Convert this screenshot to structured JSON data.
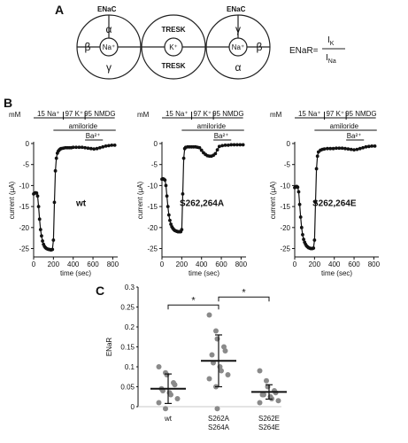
{
  "panels": {
    "a": {
      "label": "A",
      "enac_left": "ENaC",
      "enac_right": "ENaC",
      "left_subunits": {
        "top": "α",
        "left": "β",
        "bottom": "γ",
        "center": "Na⁺"
      },
      "middle": {
        "top": "TRESK",
        "bottom": "TRESK",
        "center": "K⁺"
      },
      "right_subunits": {
        "top": "γ",
        "right": "β",
        "bottom": "α",
        "center": "Na⁺"
      },
      "formula": {
        "lhs": "ENaR=",
        "numerator": "I",
        "numerator_sub": "K",
        "denominator": "I",
        "denominator_sub": "Na"
      }
    },
    "b": {
      "label": "B"
    },
    "c": {
      "label": "C"
    }
  },
  "protocol": {
    "unit": "mM",
    "segments": [
      "15 Na⁺",
      "97 K⁺",
      "95 NMDG"
    ],
    "drug": "amiloride",
    "ba": "Ba²⁺"
  },
  "chart_data": [
    {
      "type": "line",
      "panel": "B",
      "name": "wt",
      "label": "wt",
      "xlabel": "time (sec)",
      "ylabel": "current (µA)",
      "xlim": [
        0,
        850
      ],
      "ylim": [
        -27,
        0
      ],
      "xticks": [
        0,
        200,
        400,
        600,
        800
      ],
      "yticks": [
        0,
        -5,
        -10,
        -15,
        -20,
        -25
      ],
      "x": [
        0,
        10,
        20,
        30,
        40,
        50,
        60,
        70,
        80,
        90,
        100,
        110,
        120,
        130,
        140,
        150,
        160,
        170,
        180,
        190,
        200,
        210,
        220,
        230,
        240,
        250,
        260,
        270,
        280,
        300,
        320,
        340,
        360,
        380,
        400,
        430,
        460,
        490,
        520,
        550,
        580,
        610,
        640,
        670,
        700,
        730,
        760,
        790,
        820
      ],
      "y": [
        -12,
        -11.8,
        -11.7,
        -11.8,
        -12.5,
        -15,
        -18,
        -20.5,
        -22,
        -23.2,
        -24,
        -24.5,
        -24.8,
        -25,
        -25.1,
        -25.2,
        -25.2,
        -25.3,
        -25.3,
        -25.2,
        -23,
        -14,
        -6.5,
        -3.5,
        -2.3,
        -1.8,
        -1.5,
        -1.3,
        -1.2,
        -1.1,
        -1.0,
        -1.0,
        -1.0,
        -1.0,
        -0.9,
        -0.9,
        -0.9,
        -0.9,
        -1.0,
        -1.1,
        -1.2,
        -1.3,
        -1.2,
        -1.0,
        -0.8,
        -0.6,
        -0.5,
        -0.4,
        -0.4
      ]
    },
    {
      "type": "line",
      "panel": "B",
      "name": "S262,264A",
      "label": "S262,264A",
      "xlabel": "time (sec)",
      "ylabel": "current (µA)",
      "xlim": [
        0,
        850
      ],
      "ylim": [
        -27,
        0
      ],
      "xticks": [
        0,
        200,
        400,
        600,
        800
      ],
      "yticks": [
        0,
        -5,
        -10,
        -15,
        -20,
        -25
      ],
      "x": [
        0,
        10,
        20,
        30,
        40,
        50,
        60,
        70,
        80,
        90,
        100,
        110,
        120,
        130,
        140,
        150,
        160,
        170,
        180,
        190,
        200,
        210,
        220,
        230,
        240,
        260,
        280,
        300,
        320,
        340,
        360,
        380,
        400,
        420,
        440,
        460,
        480,
        500,
        520,
        540,
        560,
        580,
        610,
        640,
        670,
        700,
        730,
        760,
        790,
        820
      ],
      "y": [
        -8.5,
        -8.4,
        -8.5,
        -8.7,
        -10,
        -12.5,
        -15,
        -17,
        -18.3,
        -19.2,
        -19.8,
        -20.2,
        -20.5,
        -20.7,
        -20.8,
        -20.9,
        -21,
        -21,
        -21,
        -21,
        -20.5,
        -12,
        -3.5,
        -1.2,
        -0.9,
        -0.8,
        -0.8,
        -0.8,
        -0.8,
        -0.8,
        -0.9,
        -1.0,
        -1.6,
        -2.2,
        -2.6,
        -2.9,
        -3.0,
        -3.0,
        -2.8,
        -2.4,
        -1.5,
        -0.7,
        -0.5,
        -0.4,
        -0.4,
        -0.3,
        -0.3,
        -0.3,
        -0.3,
        -0.3
      ]
    },
    {
      "type": "line",
      "panel": "B",
      "name": "S262,264E",
      "label": "S262,264E",
      "xlabel": "time (sec)",
      "ylabel": "current (µA)",
      "xlim": [
        0,
        850
      ],
      "ylim": [
        -27,
        0
      ],
      "xticks": [
        0,
        200,
        400,
        600,
        800
      ],
      "yticks": [
        0,
        -5,
        -10,
        -15,
        -20,
        -25
      ],
      "x": [
        0,
        10,
        20,
        30,
        40,
        50,
        60,
        70,
        80,
        90,
        100,
        110,
        120,
        130,
        140,
        150,
        160,
        170,
        180,
        190,
        200,
        210,
        220,
        230,
        240,
        260,
        280,
        300,
        330,
        360,
        390,
        420,
        450,
        480,
        510,
        540,
        570,
        600,
        630,
        660,
        690,
        720,
        750,
        780,
        810
      ],
      "y": [
        -10.5,
        -10.3,
        -10.2,
        -10.4,
        -11.5,
        -14.5,
        -17.5,
        -20,
        -21.7,
        -22.8,
        -23.5,
        -24,
        -24.4,
        -24.6,
        -24.8,
        -24.9,
        -25,
        -25,
        -25,
        -24.9,
        -23,
        -14,
        -6,
        -3,
        -2,
        -1.6,
        -1.4,
        -1.3,
        -1.2,
        -1.2,
        -1.2,
        -1.1,
        -1.1,
        -1.1,
        -1.2,
        -1.3,
        -1.4,
        -1.5,
        -1.4,
        -1.2,
        -1.0,
        -0.8,
        -0.7,
        -0.6,
        -0.6
      ]
    },
    {
      "type": "scatter",
      "panel": "C",
      "ylabel": "ENaR",
      "ylim": [
        0,
        0.3
      ],
      "yticks": [
        0,
        0.05,
        0.1,
        0.15,
        0.2,
        0.25,
        0.3
      ],
      "categories": [
        "wt",
        "S262A S264A",
        "S262E S264E"
      ],
      "category_lines": [
        [
          "wt"
        ],
        [
          "S262A",
          "S264A"
        ],
        [
          "S262E",
          "S264E"
        ]
      ],
      "groups": [
        {
          "name": "wt",
          "mean": 0.045,
          "sd": 0.037,
          "values": [
            0.1,
            0.085,
            0.08,
            0.06,
            0.055,
            0.045,
            0.04,
            0.035,
            0.03,
            0.02,
            0.01,
            -0.005
          ]
        },
        {
          "name": "S262A S264A",
          "mean": 0.115,
          "sd": 0.065,
          "values": [
            0.23,
            0.19,
            0.17,
            0.15,
            0.14,
            0.13,
            0.11,
            0.1,
            0.09,
            0.08,
            0.07,
            0.05,
            -0.005
          ]
        },
        {
          "name": "S262E S264E",
          "mean": 0.037,
          "sd": 0.018,
          "values": [
            0.09,
            0.065,
            0.05,
            0.04,
            0.035,
            0.03,
            0.03,
            0.025,
            0.02,
            0.015,
            0.01
          ]
        }
      ],
      "significance": [
        {
          "from": "wt",
          "to": "S262A S264A",
          "label": "*"
        },
        {
          "from": "S262A S264A",
          "to": "S262E S264E",
          "label": "*"
        }
      ]
    }
  ]
}
